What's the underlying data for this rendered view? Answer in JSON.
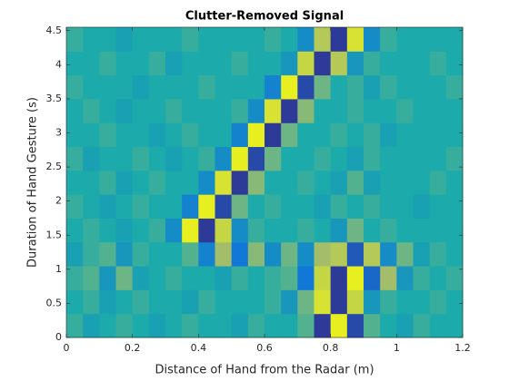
{
  "chart_data": {
    "type": "heatmap",
    "title": "Clutter-Removed Signal",
    "x_label": "Distance of Hand from the Radar (m)",
    "y_label": "Duration of Hand Gesture (s)",
    "x": [
      0.025,
      0.075,
      0.125,
      0.175,
      0.225,
      0.275,
      0.325,
      0.375,
      0.425,
      0.475,
      0.525,
      0.575,
      0.625,
      0.675,
      0.725,
      0.775,
      0.825,
      0.875,
      0.925,
      0.975,
      1.025,
      1.075,
      1.125,
      1.175
    ],
    "y": [
      0.175,
      0.525,
      0.875,
      1.225,
      1.575,
      1.925,
      2.275,
      2.625,
      2.975,
      3.325,
      3.675,
      4.025,
      4.375
    ],
    "z": [
      [
        0.1,
        -0.1,
        0,
        0.1,
        0,
        -0.1,
        0,
        0.1,
        0,
        0,
        -0.1,
        0.1,
        0,
        0,
        0.2,
        -0.9,
        0.9,
        -0.8,
        0.2,
        0,
        -0.1,
        0.1,
        0,
        0
      ],
      [
        0,
        0.1,
        -0.1,
        0,
        0.1,
        0,
        0,
        -0.1,
        0.1,
        0,
        0,
        0,
        0.1,
        -0.2,
        0.3,
        0.8,
        -0.9,
        0.7,
        -0.2,
        0.1,
        0,
        0,
        0.1,
        0
      ],
      [
        0.1,
        0.2,
        -0.2,
        0.3,
        -0.1,
        0,
        0.1,
        0,
        0,
        -0.1,
        0.1,
        0,
        0.1,
        0.2,
        -0.5,
        0.7,
        -0.9,
        0.9,
        -0.6,
        0.5,
        -0.2,
        0.1,
        0,
        0.1
      ],
      [
        -0.1,
        0.1,
        0.2,
        -0.2,
        0.1,
        0,
        0,
        0.2,
        -0.4,
        0.5,
        -0.5,
        0.4,
        -0.3,
        0.3,
        -0.3,
        0.5,
        0.6,
        -0.7,
        0.6,
        -0.3,
        0.3,
        -0.1,
        0.1,
        0
      ],
      [
        0,
        0.1,
        0,
        -0.1,
        0,
        0.1,
        -0.3,
        0.9,
        -0.9,
        0.7,
        -0.3,
        0.1,
        0,
        0,
        0.1,
        0,
        -0.2,
        0.3,
        0,
        0.1,
        0,
        0,
        0,
        0
      ],
      [
        0.1,
        0,
        -0.1,
        0,
        0.1,
        0,
        0,
        -0.4,
        0.9,
        -0.8,
        0.3,
        0,
        0.1,
        0,
        0,
        -0.1,
        0.1,
        0,
        0.1,
        0,
        0,
        -0.1,
        0,
        0
      ],
      [
        0,
        0,
        0.1,
        -0.1,
        0,
        0.1,
        0,
        0,
        -0.3,
        0.8,
        -0.9,
        0.4,
        0,
        0,
        0.1,
        0,
        -0.1,
        0.2,
        -0.1,
        0,
        0,
        0,
        0.1,
        0
      ],
      [
        0.1,
        -0.1,
        0,
        0,
        0.1,
        0,
        -0.1,
        0,
        0.1,
        -0.3,
        0.9,
        -0.8,
        0.3,
        0,
        0,
        0.1,
        0,
        -0.1,
        0.1,
        0,
        0,
        0,
        0,
        0.1
      ],
      [
        0,
        0,
        0.1,
        0,
        0,
        -0.1,
        0,
        0.1,
        0,
        0,
        -0.4,
        0.9,
        -0.9,
        0.3,
        0,
        0,
        0.1,
        0,
        0.1,
        -0.1,
        0,
        0,
        0,
        0
      ],
      [
        0,
        0.1,
        0,
        -0.1,
        0,
        0,
        0.1,
        0,
        0,
        0,
        0.1,
        -0.3,
        0.8,
        -0.9,
        0.4,
        0,
        0,
        0.1,
        0,
        0,
        0.1,
        0,
        0,
        0
      ],
      [
        0.1,
        0,
        0,
        0,
        -0.1,
        0,
        0,
        0,
        0.1,
        0,
        0,
        0,
        -0.4,
        0.9,
        -0.8,
        0.3,
        0,
        0.1,
        -0.1,
        0.1,
        0,
        0,
        0,
        0.1
      ],
      [
        0,
        0,
        0.1,
        0,
        0,
        0.1,
        -0.1,
        0,
        0,
        0,
        0.1,
        0,
        0,
        -0.2,
        0.7,
        -0.9,
        0.6,
        -0.2,
        0.1,
        0,
        0,
        0,
        0.1,
        0
      ],
      [
        0.1,
        0,
        0,
        -0.1,
        0,
        0,
        0,
        0.1,
        0,
        0,
        0,
        0,
        0.1,
        0,
        -0.3,
        0.6,
        -0.9,
        0.8,
        -0.3,
        0.1,
        0,
        0,
        0,
        0
      ]
    ],
    "clim": [
      -1,
      1
    ],
    "colormap": "parula",
    "xlim": [
      0,
      1.2
    ],
    "ylim": [
      0,
      4.55
    ],
    "xticks": [
      0,
      0.2,
      0.4,
      0.6,
      0.8,
      1,
      1.2
    ],
    "yticks": [
      0,
      0.5,
      1,
      1.5,
      2,
      2.5,
      3,
      3.5,
      4,
      4.5
    ]
  }
}
